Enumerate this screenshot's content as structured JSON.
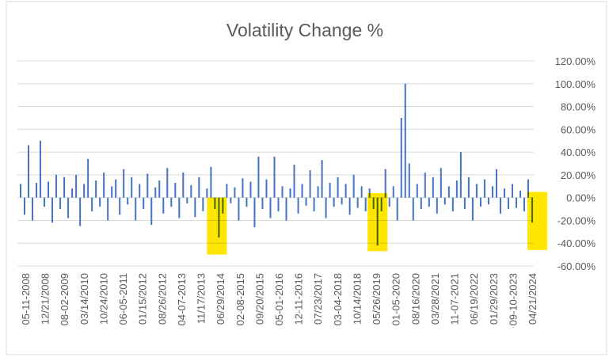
{
  "chart_data": {
    "type": "bar",
    "title": "Volatility Change %",
    "xlabel": "",
    "ylabel": "",
    "ylim": [
      -60,
      120
    ],
    "y_ticks": [
      "120.00%",
      "100.00%",
      "80.00%",
      "60.00%",
      "40.00%",
      "20.00%",
      "0.00%",
      "-20.00%",
      "-40.00%",
      "-60.00%"
    ],
    "y_tick_values": [
      120,
      100,
      80,
      60,
      40,
      20,
      0,
      -20,
      -40,
      -60
    ],
    "y_axis_side": "right",
    "grid": true,
    "x_tick_labels": [
      "05-11-2008",
      "12/21/2008",
      "08-02-2009",
      "03/14/2010",
      "10/24/2010",
      "06-05-2011",
      "01/15/2012",
      "08/26/2012",
      "04-07-2013",
      "11/17/2013",
      "06/29/2014",
      "02-08-2015",
      "09/20/2015",
      "05-01-2016",
      "12-11-2016",
      "07/23/2017",
      "03-04-2018",
      "10/14/2018",
      "05/26/2019",
      "01-05-2020",
      "08/16/2020",
      "03/28/2021",
      "11-07-2021",
      "06/19/2022",
      "01/29/2023",
      "09-10-2023",
      "04/21/2024"
    ],
    "series": [
      {
        "name": "Volatility Change %",
        "color": "#4472C4",
        "values": [
          12,
          -15,
          46,
          -20,
          13,
          50,
          -8,
          14,
          -22,
          20,
          -10,
          18,
          -18,
          8,
          20,
          -25,
          12,
          34,
          -12,
          15,
          -8,
          22,
          -20,
          10,
          16,
          -15,
          25,
          -6,
          18,
          -20,
          12,
          -10,
          21,
          -24,
          9,
          15,
          -14,
          26,
          -8,
          13,
          -18,
          22,
          -5,
          11,
          -17,
          18,
          -12,
          8,
          27,
          -10,
          -35,
          -14,
          12,
          -5,
          9,
          -20,
          17,
          -8,
          14,
          -26,
          36,
          -10,
          16,
          -18,
          36,
          -12,
          10,
          -20,
          8,
          29,
          -14,
          12,
          -7,
          24,
          -12,
          10,
          33,
          -18,
          13,
          -8,
          18,
          -6,
          12,
          -15,
          20,
          -9,
          10,
          -12,
          8,
          -10,
          -42,
          -12,
          25,
          -8,
          10,
          -20,
          70,
          100,
          30,
          -20,
          12,
          -10,
          22,
          -8,
          18,
          -14,
          26,
          -6,
          10,
          -12,
          15,
          40,
          -10,
          18,
          -20,
          12,
          -8,
          16,
          -6,
          10,
          25,
          -14,
          8,
          -10,
          12,
          -9,
          6,
          -12,
          16,
          -22
        ]
      }
    ],
    "highlights": [
      {
        "from_index": 47,
        "to_index": 52,
        "y_from": 0,
        "y_to": -50,
        "color": "#FFE600"
      },
      {
        "from_index": 87.5,
        "to_index": 92.5,
        "y_from": 4,
        "y_to": -47,
        "color": "#FFE600"
      },
      {
        "from_index": 127.8,
        "to_index": 132.8,
        "y_from": 5,
        "y_to": -46,
        "color": "#FFE600"
      }
    ]
  }
}
